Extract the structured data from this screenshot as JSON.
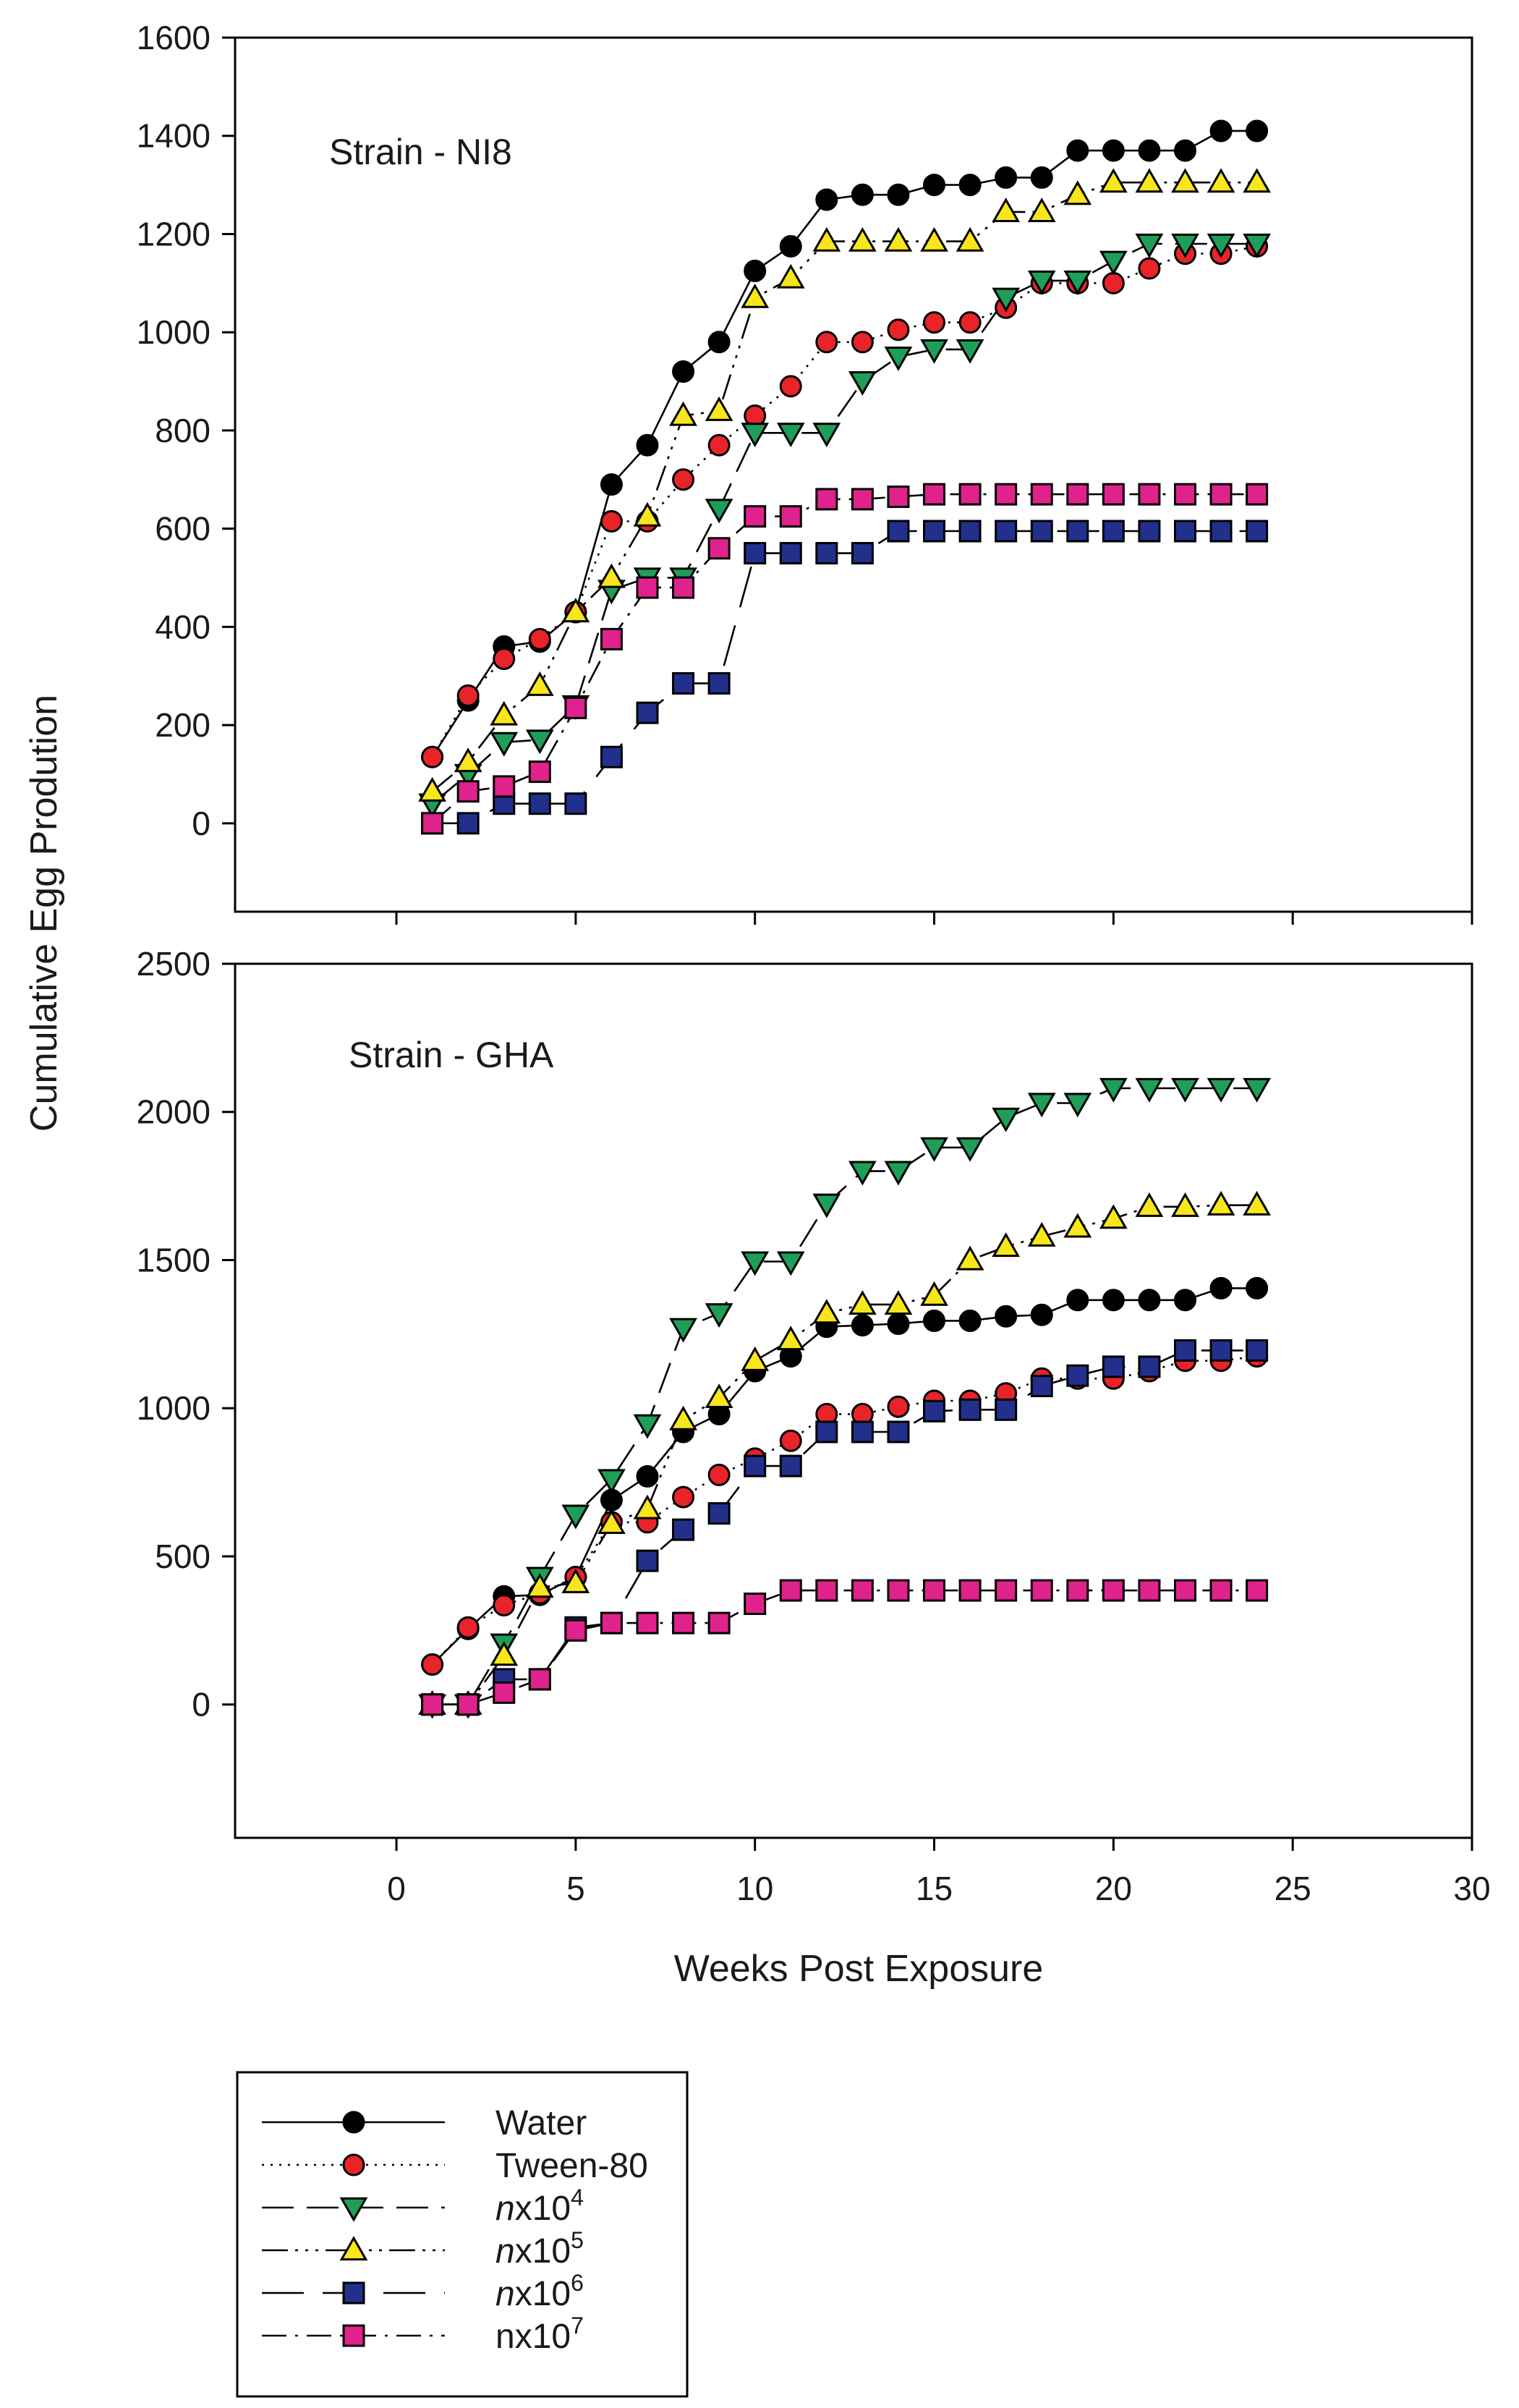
{
  "chart_data": [
    {
      "type": "line",
      "title": "Strain - NI8",
      "xlabel": "Weeks Post Exposure",
      "ylabel": "Cumulative Egg Prodution",
      "xlim": [
        -4.5,
        30
      ],
      "ylim": [
        -180,
        1600
      ],
      "xticks": [
        0,
        5,
        10,
        15,
        20,
        25,
        30
      ],
      "yticks": [
        0,
        200,
        400,
        600,
        800,
        1000,
        1200,
        1400,
        1600
      ],
      "x": [
        1,
        2,
        3,
        4,
        5,
        6,
        7,
        8,
        9,
        10,
        11,
        12,
        13,
        14,
        15,
        16,
        17,
        18,
        19,
        20,
        21,
        22,
        23,
        24
      ],
      "series": [
        {
          "key": "water",
          "name": "Water",
          "values": [
            135,
            250,
            360,
            370,
            430,
            690,
            770,
            920,
            980,
            1125,
            1175,
            1270,
            1280,
            1280,
            1300,
            1300,
            1315,
            1315,
            1370,
            1370,
            1370,
            1370,
            1410,
            1410
          ]
        },
        {
          "key": "tween",
          "name": "Tween-80",
          "values": [
            135,
            260,
            335,
            375,
            430,
            615,
            615,
            700,
            770,
            830,
            890,
            980,
            980,
            1005,
            1020,
            1020,
            1050,
            1100,
            1100,
            1100,
            1130,
            1160,
            1160,
            1175
          ]
        },
        {
          "key": "n4",
          "name": "nx10^4",
          "values": [
            40,
            100,
            165,
            170,
            240,
            475,
            500,
            500,
            640,
            795,
            795,
            795,
            900,
            950,
            965,
            965,
            1070,
            1105,
            1105,
            1145,
            1180,
            1180,
            1180,
            1180
          ]
        },
        {
          "key": "n5",
          "name": "nx10^5",
          "values": [
            65,
            125,
            220,
            280,
            430,
            500,
            625,
            830,
            840,
            1070,
            1110,
            1185,
            1185,
            1185,
            1185,
            1185,
            1245,
            1245,
            1280,
            1305,
            1305,
            1305,
            1305,
            1305
          ]
        },
        {
          "key": "n6",
          "name": "nx10^6",
          "values": [
            0,
            0,
            40,
            40,
            40,
            135,
            225,
            285,
            285,
            550,
            550,
            550,
            550,
            595,
            595,
            595,
            595,
            595,
            595,
            595,
            595,
            595,
            595,
            595
          ]
        },
        {
          "key": "n7",
          "name": "nx10^7",
          "values": [
            0,
            65,
            75,
            105,
            235,
            375,
            480,
            480,
            560,
            625,
            625,
            660,
            660,
            665,
            670,
            670,
            670,
            670,
            670,
            670,
            670,
            670,
            670,
            670
          ]
        }
      ]
    },
    {
      "type": "line",
      "title": "Strain - GHA",
      "xlabel": "Weeks Post Exposure",
      "ylabel": "Cumulative Egg Prodution",
      "xlim": [
        -4.5,
        30
      ],
      "ylim": [
        -450,
        2500
      ],
      "xticks": [
        0,
        5,
        10,
        15,
        20,
        25,
        30
      ],
      "yticks": [
        0,
        500,
        1000,
        1500,
        2000,
        2500
      ],
      "x": [
        1,
        2,
        3,
        4,
        5,
        6,
        7,
        8,
        9,
        10,
        11,
        12,
        13,
        14,
        15,
        16,
        17,
        18,
        19,
        20,
        21,
        22,
        23,
        24
      ],
      "series": [
        {
          "key": "water",
          "name": "Water",
          "values": [
            135,
            255,
            365,
            370,
            430,
            690,
            770,
            920,
            980,
            1125,
            1175,
            1275,
            1280,
            1285,
            1295,
            1295,
            1310,
            1315,
            1365,
            1365,
            1365,
            1365,
            1405,
            1405
          ]
        },
        {
          "key": "tween",
          "name": "Tween-80",
          "values": [
            135,
            260,
            335,
            375,
            430,
            615,
            615,
            700,
            775,
            830,
            890,
            980,
            980,
            1005,
            1025,
            1025,
            1050,
            1100,
            1100,
            1100,
            1125,
            1160,
            1160,
            1175
          ]
        },
        {
          "key": "n4",
          "name": "nx10^4",
          "values": [
            0,
            0,
            205,
            430,
            640,
            760,
            945,
            1270,
            1320,
            1495,
            1495,
            1690,
            1800,
            1800,
            1880,
            1880,
            1980,
            2030,
            2030,
            2080,
            2080,
            2080,
            2080,
            2080
          ]
        },
        {
          "key": "n5",
          "name": "nx10^5",
          "values": [
            0,
            0,
            165,
            395,
            410,
            610,
            660,
            960,
            1035,
            1160,
            1230,
            1320,
            1350,
            1350,
            1380,
            1500,
            1545,
            1580,
            1610,
            1640,
            1680,
            1680,
            1685,
            1685
          ]
        },
        {
          "key": "n6",
          "name": "nx10^6",
          "values": [
            0,
            0,
            85,
            85,
            260,
            275,
            485,
            590,
            645,
            805,
            805,
            920,
            920,
            920,
            990,
            995,
            995,
            1075,
            1110,
            1140,
            1140,
            1195,
            1195,
            1195
          ]
        },
        {
          "key": "n7",
          "name": "nx10^7",
          "values": [
            0,
            0,
            40,
            85,
            250,
            275,
            275,
            275,
            275,
            340,
            385,
            385,
            385,
            385,
            385,
            385,
            385,
            385,
            385,
            385,
            385,
            385,
            385,
            385
          ]
        }
      ]
    }
  ],
  "legend": {
    "placement": "bottom-left",
    "entries": [
      {
        "key": "water",
        "label": "Water"
      },
      {
        "key": "tween",
        "label": "Tween-80"
      },
      {
        "key": "n4",
        "italic": "n",
        "base": "x10",
        "sup": "4"
      },
      {
        "key": "n5",
        "italic": "n",
        "base": "x10",
        "sup": "5"
      },
      {
        "key": "n6",
        "italic": "n",
        "base": "x10",
        "sup": "6"
      },
      {
        "key": "n7",
        "italic": "",
        "base": "nx10",
        "sup": "7"
      }
    ]
  },
  "styles": {
    "water": {
      "marker": "circle",
      "fill": "#000000",
      "dash": ""
    },
    "tween": {
      "marker": "circle",
      "fill": "#e8232a",
      "dash": "3 9"
    },
    "n4": {
      "marker": "triangle-down",
      "fill": "#1e9e58",
      "dash": "44 18"
    },
    "n5": {
      "marker": "triangle-up",
      "fill": "#f8e61c",
      "dash": "36 10 4 10 4 10 4 10"
    },
    "n6": {
      "marker": "square",
      "fill": "#22308c",
      "dash": "58 26"
    },
    "n7": {
      "marker": "square",
      "fill": "#e0228c",
      "dash": "34 12 4 12"
    }
  }
}
